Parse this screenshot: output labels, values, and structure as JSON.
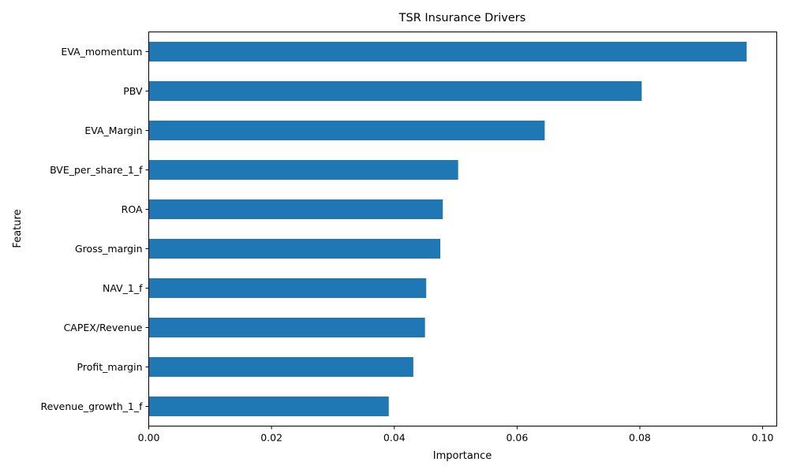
{
  "chart_data": {
    "type": "bar",
    "orientation": "horizontal",
    "title": "TSR Insurance Drivers",
    "xlabel": "Importance",
    "ylabel": "Feature",
    "categories": [
      "EVA_momentum",
      "PBV",
      "EVA_Margin",
      "BVE_per_share_1_f",
      "ROA",
      "Gross_margin",
      "NAV_1_f",
      "CAPEX/Revenue",
      "Profit_margin",
      "Revenue_growth_1_f"
    ],
    "values": [
      0.0974,
      0.0803,
      0.0645,
      0.0504,
      0.0479,
      0.0475,
      0.0452,
      0.045,
      0.0431,
      0.0391
    ],
    "xlim": [
      0,
      0.1023
    ],
    "xticks": [
      0.0,
      0.02,
      0.04,
      0.06,
      0.08,
      0.1
    ],
    "xtick_labels": [
      "0.00",
      "0.02",
      "0.04",
      "0.06",
      "0.08",
      "0.10"
    ],
    "grid": false,
    "legend": "none",
    "bar_color": "#1f77b4"
  }
}
